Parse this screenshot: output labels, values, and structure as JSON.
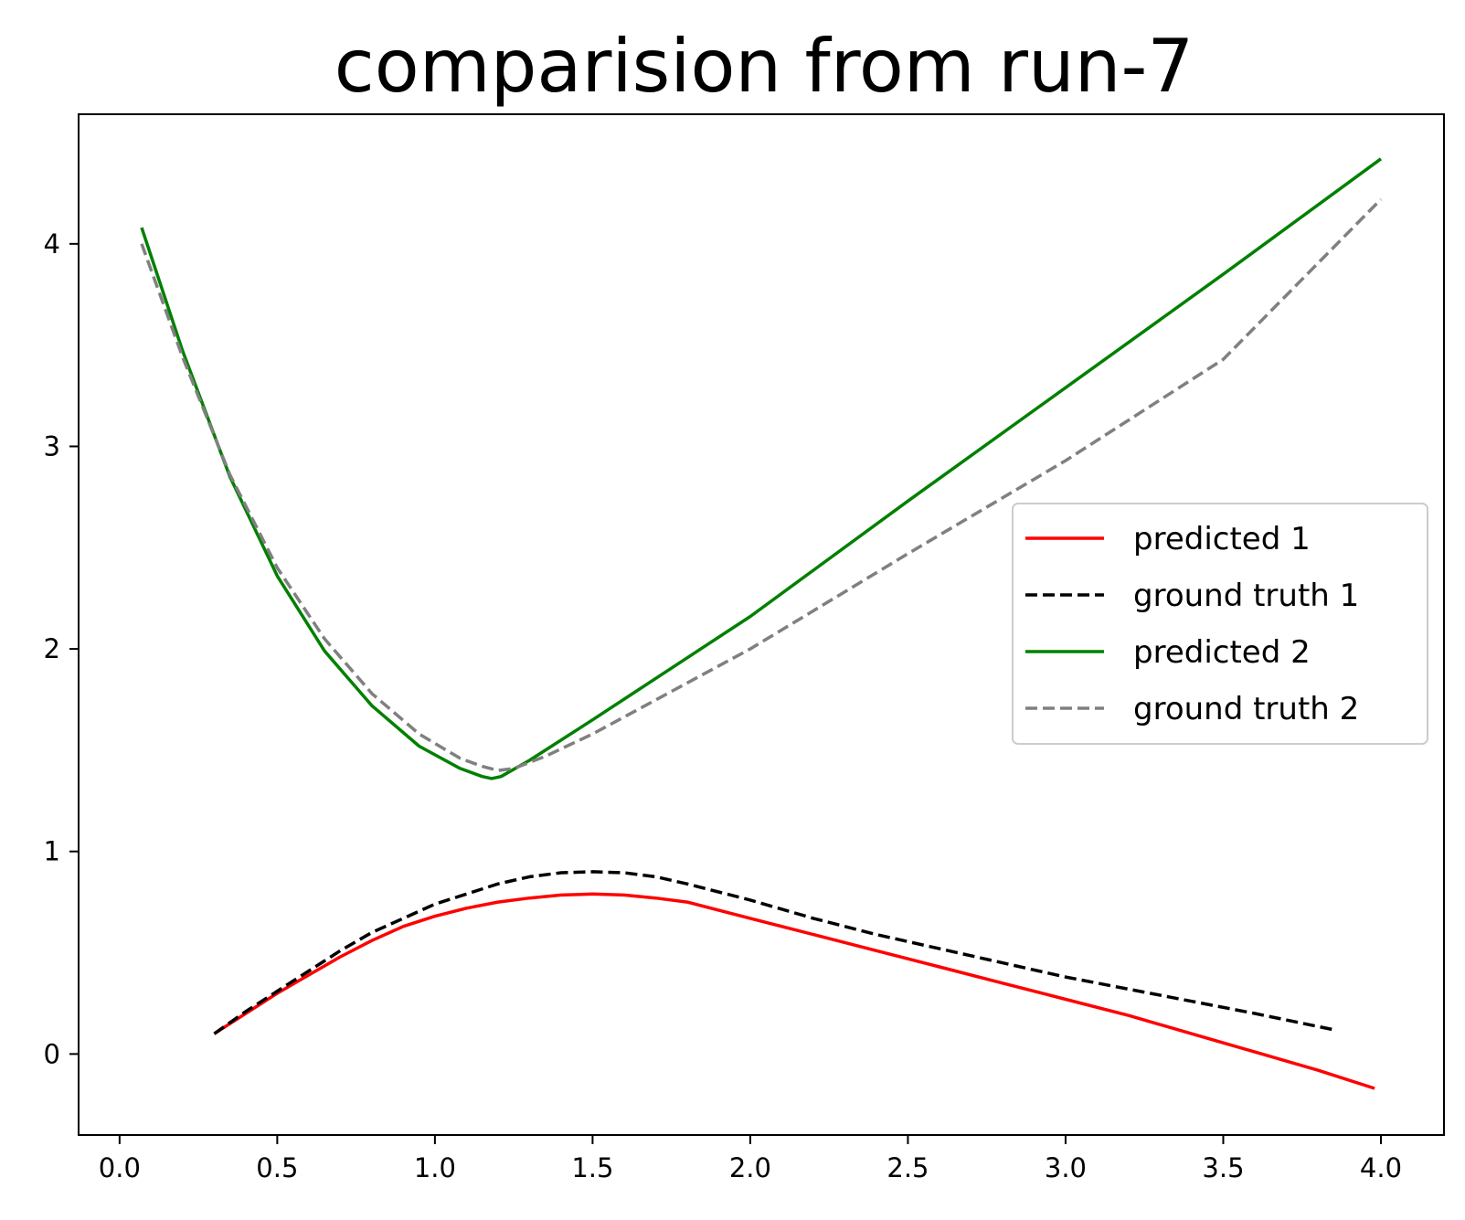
{
  "chart_data": {
    "type": "line",
    "title": "comparision from run-7",
    "xlabel": "",
    "ylabel": "",
    "xlim": [
      -0.13,
      4.2
    ],
    "ylim": [
      -0.4,
      4.64
    ],
    "xticks": [
      {
        "value": 0.0,
        "label": "0.0"
      },
      {
        "value": 0.5,
        "label": "0.5"
      },
      {
        "value": 1.0,
        "label": "1.0"
      },
      {
        "value": 1.5,
        "label": "1.5"
      },
      {
        "value": 2.0,
        "label": "2.0"
      },
      {
        "value": 2.5,
        "label": "2.5"
      },
      {
        "value": 3.0,
        "label": "3.0"
      },
      {
        "value": 3.5,
        "label": "3.5"
      },
      {
        "value": 4.0,
        "label": "4.0"
      }
    ],
    "yticks": [
      {
        "value": 0,
        "label": "0"
      },
      {
        "value": 1,
        "label": "1"
      },
      {
        "value": 2,
        "label": "2"
      },
      {
        "value": 3,
        "label": "3"
      },
      {
        "value": 4,
        "label": "4"
      }
    ],
    "grid": false,
    "legend_position": "center-right",
    "series": [
      {
        "name": "predicted 1",
        "color": "#ff0000",
        "dash": "solid",
        "x": [
          0.3,
          0.4,
          0.5,
          0.6,
          0.7,
          0.8,
          0.9,
          1.0,
          1.1,
          1.2,
          1.3,
          1.4,
          1.5,
          1.6,
          1.7,
          1.8,
          2.0,
          2.2,
          2.4,
          2.6,
          2.8,
          3.0,
          3.2,
          3.4,
          3.6,
          3.8,
          3.98
        ],
        "y": [
          0.1,
          0.2,
          0.3,
          0.39,
          0.48,
          0.56,
          0.63,
          0.68,
          0.72,
          0.75,
          0.77,
          0.785,
          0.79,
          0.785,
          0.77,
          0.75,
          0.67,
          0.59,
          0.51,
          0.43,
          0.35,
          0.27,
          0.19,
          0.1,
          0.01,
          -0.08,
          -0.17
        ]
      },
      {
        "name": "ground truth 1",
        "color": "#000000",
        "dash": "dashed",
        "x": [
          0.3,
          0.4,
          0.5,
          0.6,
          0.7,
          0.8,
          0.9,
          1.0,
          1.1,
          1.2,
          1.3,
          1.4,
          1.5,
          1.6,
          1.7,
          1.8,
          2.0,
          2.2,
          2.4,
          2.6,
          2.8,
          3.0,
          3.2,
          3.4,
          3.6,
          3.85
        ],
        "y": [
          0.1,
          0.21,
          0.31,
          0.41,
          0.51,
          0.6,
          0.67,
          0.74,
          0.79,
          0.84,
          0.875,
          0.895,
          0.9,
          0.895,
          0.875,
          0.84,
          0.76,
          0.67,
          0.59,
          0.52,
          0.45,
          0.38,
          0.32,
          0.26,
          0.2,
          0.12
        ]
      },
      {
        "name": "predicted 2",
        "color": "#008000",
        "dash": "solid",
        "x": [
          0.07,
          0.2,
          0.35,
          0.5,
          0.65,
          0.8,
          0.95,
          1.08,
          1.15,
          1.18,
          1.21,
          1.3,
          1.5,
          2.0,
          2.5,
          3.0,
          3.5,
          4.0
        ],
        "y": [
          4.08,
          3.47,
          2.85,
          2.36,
          1.99,
          1.72,
          1.52,
          1.41,
          1.37,
          1.36,
          1.37,
          1.45,
          1.65,
          2.16,
          2.73,
          3.29,
          3.85,
          4.42
        ]
      },
      {
        "name": "ground truth 2",
        "color": "#808080",
        "dash": "dashed",
        "x": [
          0.07,
          0.2,
          0.35,
          0.5,
          0.65,
          0.8,
          0.95,
          1.08,
          1.15,
          1.2,
          1.25,
          1.35,
          1.5,
          2.0,
          2.5,
          3.0,
          3.5,
          4.0
        ],
        "y": [
          4.0,
          3.44,
          2.86,
          2.4,
          2.05,
          1.78,
          1.58,
          1.46,
          1.42,
          1.4,
          1.41,
          1.47,
          1.58,
          2.0,
          2.47,
          2.93,
          3.43,
          4.22
        ]
      }
    ]
  }
}
